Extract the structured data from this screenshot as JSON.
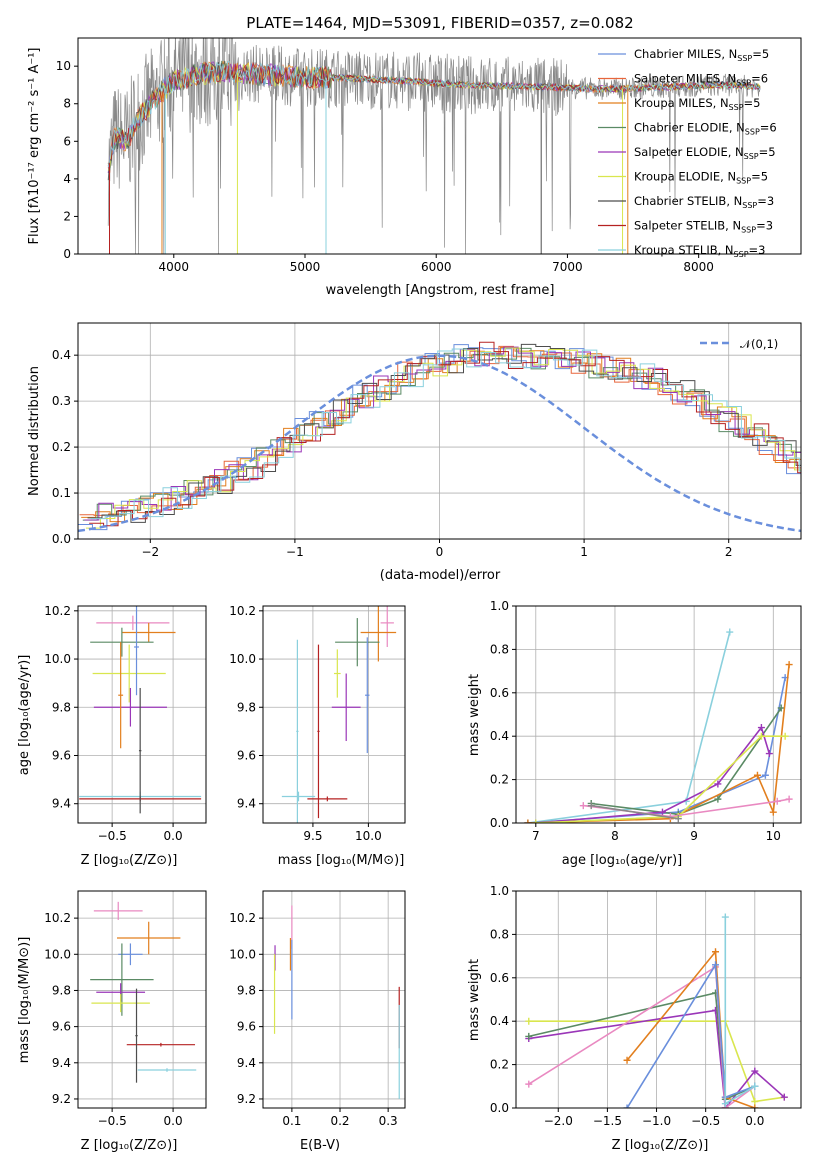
{
  "figure_title": "PLATE=1464, MJD=53091, FIBERID=0357, z=0.082",
  "colors": [
    "#6a8fdc",
    "#e8663c",
    "#e27f1e",
    "#5a8a64",
    "#9a36b8",
    "#d9e64e",
    "#4d4d4d",
    "#b52222",
    "#8ad0dd",
    "#888888",
    "#e989c1",
    "#c6e05a"
  ],
  "chart_data": [
    {
      "id": "spectrum",
      "type": "line",
      "xlabel": "wavelength [Angstrom, rest frame]",
      "ylabel": "Flux [fλ10⁻¹⁷ erg cm⁻² s⁻¹ A⁻¹]",
      "xlim": [
        3270,
        8780
      ],
      "ylim": [
        0,
        11.5
      ],
      "xticks": [
        4000,
        5000,
        6000,
        7000,
        8000
      ],
      "yticks": [
        0,
        2,
        4,
        6,
        8,
        10
      ],
      "grid": false,
      "legend_placement": "right",
      "x_range_data": [
        3500,
        8470
      ],
      "series": [
        {
          "name": "Chabrier MILES, Nₛₚₚ=5",
          "label_base": "Chabrier MILES, N",
          "label_sub": "SSP",
          "label_tail": "=5",
          "color": "#6a8fdc"
        },
        {
          "name": "Salpeter MILES, Nₛₚₚ=6",
          "label_base": "Salpeter MILES, N",
          "label_sub": "SSP",
          "label_tail": "=6",
          "color": "#e8663c"
        },
        {
          "name": "Kroupa MILES, Nₛₚₚ=5",
          "label_base": "Kroupa MILES, N",
          "label_sub": "SSP",
          "label_tail": "=5",
          "color": "#e27f1e"
        },
        {
          "name": "Chabrier ELODIE, Nₛₚₚ=6",
          "label_base": "Chabrier ELODIE, N",
          "label_sub": "SSP",
          "label_tail": "=6",
          "color": "#5a8a64"
        },
        {
          "name": "Salpeter ELODIE, Nₛₚₚ=5",
          "label_base": "Salpeter ELODIE, N",
          "label_sub": "SSP",
          "label_tail": "=5",
          "color": "#9a36b8"
        },
        {
          "name": "Kroupa ELODIE, Nₛₚₚ=5",
          "label_base": "Kroupa ELODIE, N",
          "label_sub": "SSP",
          "label_tail": "=5",
          "color": "#d9e64e"
        },
        {
          "name": "Chabrier STELIB, Nₛₚₚ=3",
          "label_base": "Chabrier STELIB, N",
          "label_sub": "SSP",
          "label_tail": "=3",
          "color": "#4d4d4d"
        },
        {
          "name": "Salpeter STELIB, Nₛₚₚ=3",
          "label_base": "Salpeter STELIB, N",
          "label_sub": "SSP",
          "label_tail": "=3",
          "color": "#b52222"
        },
        {
          "name": "Kroupa STELIB, Nₛₚₚ=3",
          "label_base": "Kroupa STELIB, N",
          "label_sub": "SSP",
          "label_tail": "=3",
          "color": "#8ad0dd"
        }
      ],
      "data_color": "#888888",
      "model_shape": {
        "x": [
          3500,
          3550,
          3650,
          3700,
          3900,
          4000,
          4200,
          4400,
          4600,
          4800,
          5000,
          5200,
          5500,
          5800,
          6000,
          6200,
          6500,
          6800,
          7000,
          7200,
          7400,
          7600,
          7800,
          8000,
          8200,
          8470
        ],
        "y": [
          4.5,
          6.2,
          6.0,
          7.0,
          8.6,
          9.2,
          9.6,
          9.7,
          9.6,
          9.5,
          9.4,
          9.4,
          9.3,
          9.2,
          9.1,
          9.0,
          8.95,
          8.9,
          8.85,
          8.8,
          8.8,
          8.85,
          8.9,
          8.95,
          9.0,
          8.9
        ]
      },
      "absorption_dips_x": [
        3934,
        4101,
        4861,
        5175,
        6563
      ]
    },
    {
      "id": "residuals",
      "type": "histogram",
      "xlabel": "(data-model)/error",
      "ylabel": "Normed distribution",
      "xlim": [
        -2.5,
        2.5
      ],
      "ylim": [
        0,
        0.47
      ],
      "xticks": [
        -2,
        -1,
        0,
        1,
        2
      ],
      "yticks": [
        0.0,
        0.1,
        0.2,
        0.3,
        0.4
      ],
      "grid": true,
      "legend": "𝒩(0,1)",
      "legend_placement": "top-right",
      "bin_width": 0.1,
      "hist_seed_values": [
        0.042,
        0.05,
        0.058,
        0.066,
        0.074,
        0.082,
        0.09,
        0.1,
        0.11,
        0.125,
        0.14,
        0.155,
        0.175,
        0.195,
        0.215,
        0.235,
        0.255,
        0.275,
        0.295,
        0.315,
        0.33,
        0.345,
        0.36,
        0.372,
        0.382,
        0.39,
        0.396,
        0.4,
        0.4,
        0.398,
        0.395,
        0.392,
        0.39,
        0.388,
        0.385,
        0.38,
        0.375,
        0.365,
        0.355,
        0.345,
        0.33,
        0.315,
        0.3,
        0.28,
        0.26,
        0.245,
        0.225,
        0.205,
        0.185,
        0.165
      ]
    },
    {
      "id": "age_vs_Z",
      "type": "scatter",
      "xlabel": "Z [log₁₀(Z/Z⊙)]",
      "ylabel": "age  [log₁₀(age/yr)]",
      "xlim": [
        -0.78,
        0.27
      ],
      "ylim": [
        9.32,
        10.22
      ],
      "xticks": [
        -0.5,
        0.0
      ],
      "yticks": [
        9.4,
        9.6,
        9.8,
        10.0,
        10.2
      ],
      "grid": true,
      "points": [
        {
          "x": -0.33,
          "y": 10.15,
          "xerr": 0.3,
          "yerr": 0.03,
          "color": "#e989c1"
        },
        {
          "x": -0.2,
          "y": 10.11,
          "xerr": 0.22,
          "yerr": 0.04,
          "color": "#e27f1e"
        },
        {
          "x": -0.42,
          "y": 10.07,
          "xerr": 0.26,
          "yerr": 0.06,
          "color": "#5a8a64"
        },
        {
          "x": -0.36,
          "y": 9.94,
          "xerr": 0.3,
          "yerr": 0.12,
          "color": "#d9e64e"
        },
        {
          "x": -0.35,
          "y": 9.8,
          "xerr": 0.3,
          "yerr": 0.08,
          "color": "#9a36b8"
        },
        {
          "x": -0.3,
          "y": 10.05,
          "xerr": 0.02,
          "yerr": 0.2,
          "color": "#6a8fdc"
        },
        {
          "x": -0.43,
          "y": 9.85,
          "xerr": 0.02,
          "yerr": 0.22,
          "color": "#e27f1e"
        },
        {
          "x": -0.27,
          "y": 9.43,
          "xerr": 0.5,
          "yerr": 0.02,
          "color": "#8ad0dd"
        },
        {
          "x": -0.27,
          "y": 9.42,
          "xerr": 0.5,
          "yerr": 0.01,
          "color": "#b52222"
        },
        {
          "x": -0.27,
          "y": 9.62,
          "xerr": 0.01,
          "yerr": 0.26,
          "color": "#4d4d4d"
        }
      ]
    },
    {
      "id": "age_vs_mass",
      "type": "scatter",
      "xlabel": "mass [log₁₀(M/M⊙)]",
      "ylabel": "",
      "xlim": [
        9.05,
        10.33
      ],
      "ylim": [
        9.32,
        10.22
      ],
      "xticks": [
        9.5,
        10.0
      ],
      "yticks": [
        9.4,
        9.6,
        9.8,
        10.0,
        10.2
      ],
      "grid": true,
      "points": [
        {
          "x": 10.17,
          "y": 10.15,
          "xerr": 0.06,
          "yerr": 0.1,
          "color": "#e989c1"
        },
        {
          "x": 10.09,
          "y": 10.11,
          "xerr": 0.16,
          "yerr": 0.12,
          "color": "#e27f1e"
        },
        {
          "x": 9.9,
          "y": 10.07,
          "xerr": 0.2,
          "yerr": 0.1,
          "color": "#5a8a64"
        },
        {
          "x": 9.72,
          "y": 9.94,
          "xerr": 0.03,
          "yerr": 0.1,
          "color": "#d9e64e"
        },
        {
          "x": 9.8,
          "y": 9.8,
          "xerr": 0.13,
          "yerr": 0.14,
          "color": "#9a36b8"
        },
        {
          "x": 9.99,
          "y": 9.85,
          "xerr": 0.02,
          "yerr": 0.24,
          "color": "#6a8fdc"
        },
        {
          "x": 9.37,
          "y": 9.43,
          "xerr": 0.15,
          "yerr": 0.02,
          "color": "#8ad0dd"
        },
        {
          "x": 9.63,
          "y": 9.42,
          "xerr": 0.18,
          "yerr": 0.01,
          "color": "#b52222"
        },
        {
          "x": 9.36,
          "y": 9.7,
          "xerr": 0.01,
          "yerr": 0.38,
          "color": "#8ad0dd"
        },
        {
          "x": 9.55,
          "y": 9.7,
          "xerr": 0.01,
          "yerr": 0.36,
          "color": "#b52222"
        }
      ]
    },
    {
      "id": "weight_vs_age",
      "type": "line",
      "xlabel": "age  [log₁₀(age/yr)]",
      "ylabel": "mass weight",
      "xlim": [
        6.75,
        10.35
      ],
      "ylim": [
        0.0,
        1.0
      ],
      "xticks": [
        7,
        8,
        9,
        10
      ],
      "yticks": [
        0.0,
        0.2,
        0.4,
        0.6,
        0.8,
        1.0
      ],
      "grid": true,
      "series": [
        {
          "color": "#8ad0dd",
          "x": [
            6.9,
            8.9,
            9.45
          ],
          "y": [
            0.0,
            0.1,
            0.88
          ]
        },
        {
          "color": "#6a8fdc",
          "x": [
            6.9,
            8.8,
            9.9,
            10.15
          ],
          "y": [
            0.0,
            0.05,
            0.22,
            0.67
          ]
        },
        {
          "color": "#5a8a64",
          "x": [
            7.7,
            8.8,
            9.3,
            10.1
          ],
          "y": [
            0.09,
            0.04,
            0.11,
            0.53
          ]
        },
        {
          "color": "#9a36b8",
          "x": [
            7.0,
            8.6,
            9.3,
            9.85,
            9.95
          ],
          "y": [
            0.0,
            0.05,
            0.18,
            0.44,
            0.32
          ]
        },
        {
          "color": "#e27f1e",
          "x": [
            6.9,
            8.7,
            9.8,
            10.0,
            10.2
          ],
          "y": [
            0.0,
            0.02,
            0.22,
            0.05,
            0.73
          ]
        },
        {
          "color": "#d9e64e",
          "x": [
            7.0,
            8.8,
            9.85,
            10.15
          ],
          "y": [
            0.0,
            0.03,
            0.4,
            0.4
          ]
        },
        {
          "color": "#e989c1",
          "x": [
            7.6,
            8.7,
            10.05,
            10.2
          ],
          "y": [
            0.08,
            0.03,
            0.1,
            0.11
          ]
        },
        {
          "color": "#888888",
          "x": [
            7.7,
            8.8
          ],
          "y": [
            0.08,
            0.02
          ]
        }
      ]
    },
    {
      "id": "mass_vs_Z",
      "type": "scatter",
      "xlabel": "Z [log₁₀(Z/Z⊙)]",
      "ylabel": "mass [log₁₀(M/M⊙)]",
      "xlim": [
        -0.78,
        0.27
      ],
      "ylim": [
        9.15,
        10.35
      ],
      "xticks": [
        -0.5,
        0.0
      ],
      "yticks": [
        9.2,
        9.4,
        9.6,
        9.8,
        10.0,
        10.2
      ],
      "grid": true,
      "points": [
        {
          "x": -0.45,
          "y": 10.24,
          "xerr": 0.2,
          "yerr": 0.05,
          "color": "#e989c1"
        },
        {
          "x": -0.2,
          "y": 10.09,
          "xerr": 0.26,
          "yerr": 0.09,
          "color": "#e27f1e"
        },
        {
          "x": -0.35,
          "y": 10.0,
          "xerr": 0.1,
          "yerr": 0.06,
          "color": "#6a8fdc"
        },
        {
          "x": -0.42,
          "y": 9.86,
          "xerr": 0.26,
          "yerr": 0.2,
          "color": "#5a8a64"
        },
        {
          "x": -0.43,
          "y": 9.79,
          "xerr": 0.2,
          "yerr": 0.05,
          "color": "#9a36b8"
        },
        {
          "x": -0.43,
          "y": 9.73,
          "xerr": 0.24,
          "yerr": 0.05,
          "color": "#d9e64e"
        },
        {
          "x": -0.1,
          "y": 9.5,
          "xerr": 0.28,
          "yerr": 0.01,
          "color": "#b52222"
        },
        {
          "x": -0.05,
          "y": 9.36,
          "xerr": 0.24,
          "yerr": 0.01,
          "color": "#8ad0dd"
        },
        {
          "x": -0.3,
          "y": 9.55,
          "xerr": 0.01,
          "yerr": 0.26,
          "color": "#4d4d4d"
        }
      ]
    },
    {
      "id": "mass_vs_ebv",
      "type": "scatter",
      "xlabel": "E(B-V)",
      "ylabel": "",
      "xlim": [
        0.04,
        0.335
      ],
      "ylim": [
        9.15,
        10.35
      ],
      "xticks": [
        0.1,
        0.2,
        0.3
      ],
      "yticks": [
        9.2,
        9.4,
        9.6,
        9.8,
        10.0,
        10.2
      ],
      "grid": true,
      "points": [
        {
          "x": 0.065,
          "y": 9.98,
          "xerr": 0.0,
          "yerr": 0.07,
          "color": "#9a36b8"
        },
        {
          "x": 0.064,
          "y": 9.78,
          "xerr": 0.0,
          "yerr": 0.22,
          "color": "#d9e64e"
        },
        {
          "x": 0.1,
          "y": 10.15,
          "xerr": 0.0,
          "yerr": 0.12,
          "color": "#e989c1"
        },
        {
          "x": 0.1,
          "y": 9.86,
          "xerr": 0.0,
          "yerr": 0.22,
          "color": "#6a8fdc"
        },
        {
          "x": 0.097,
          "y": 10.0,
          "xerr": 0.0,
          "yerr": 0.09,
          "color": "#e27f1e"
        },
        {
          "x": 0.323,
          "y": 9.65,
          "xerr": 0.0,
          "yerr": 0.17,
          "color": "#b52222"
        },
        {
          "x": 0.323,
          "y": 9.46,
          "xerr": 0.0,
          "yerr": 0.26,
          "color": "#8ad0dd"
        }
      ]
    },
    {
      "id": "weight_vs_Z",
      "type": "line",
      "xlabel": "Z [log₁₀(Z/Z⊙)]",
      "ylabel": "mass weight",
      "xlim": [
        -2.43,
        0.47
      ],
      "ylim": [
        0.0,
        1.0
      ],
      "xticks": [
        -2.0,
        -1.5,
        -1.0,
        -0.5,
        0.0
      ],
      "yticks": [
        0.0,
        0.2,
        0.4,
        0.6,
        0.8,
        1.0
      ],
      "grid": true,
      "series": [
        {
          "color": "#d9e64e",
          "x": [
            -2.3,
            -0.3,
            0.0,
            0.3
          ],
          "y": [
            0.4,
            0.4,
            0.03,
            0.05
          ]
        },
        {
          "color": "#9a36b8",
          "x": [
            -2.3,
            -0.4,
            -0.3,
            0.0,
            0.3
          ],
          "y": [
            0.32,
            0.45,
            0.0,
            0.17,
            0.05
          ]
        },
        {
          "color": "#5a8a64",
          "x": [
            -2.3,
            -0.4,
            -0.3,
            0.0
          ],
          "y": [
            0.33,
            0.53,
            0.04,
            0.1
          ]
        },
        {
          "color": "#e989c1",
          "x": [
            -2.3,
            -0.4,
            -0.3,
            0.0
          ],
          "y": [
            0.11,
            0.65,
            0.0,
            0.1
          ]
        },
        {
          "color": "#e27f1e",
          "x": [
            -1.3,
            -0.4,
            -0.3,
            0.0
          ],
          "y": [
            0.22,
            0.72,
            0.05,
            0.0
          ]
        },
        {
          "color": "#6a8fdc",
          "x": [
            -1.3,
            -0.4,
            -0.3,
            0.0
          ],
          "y": [
            0.0,
            0.66,
            0.05,
            0.1
          ]
        },
        {
          "color": "#8ad0dd",
          "x": [
            -0.3,
            -0.3,
            0.0
          ],
          "y": [
            0.88,
            0.02,
            0.1
          ]
        }
      ]
    }
  ]
}
